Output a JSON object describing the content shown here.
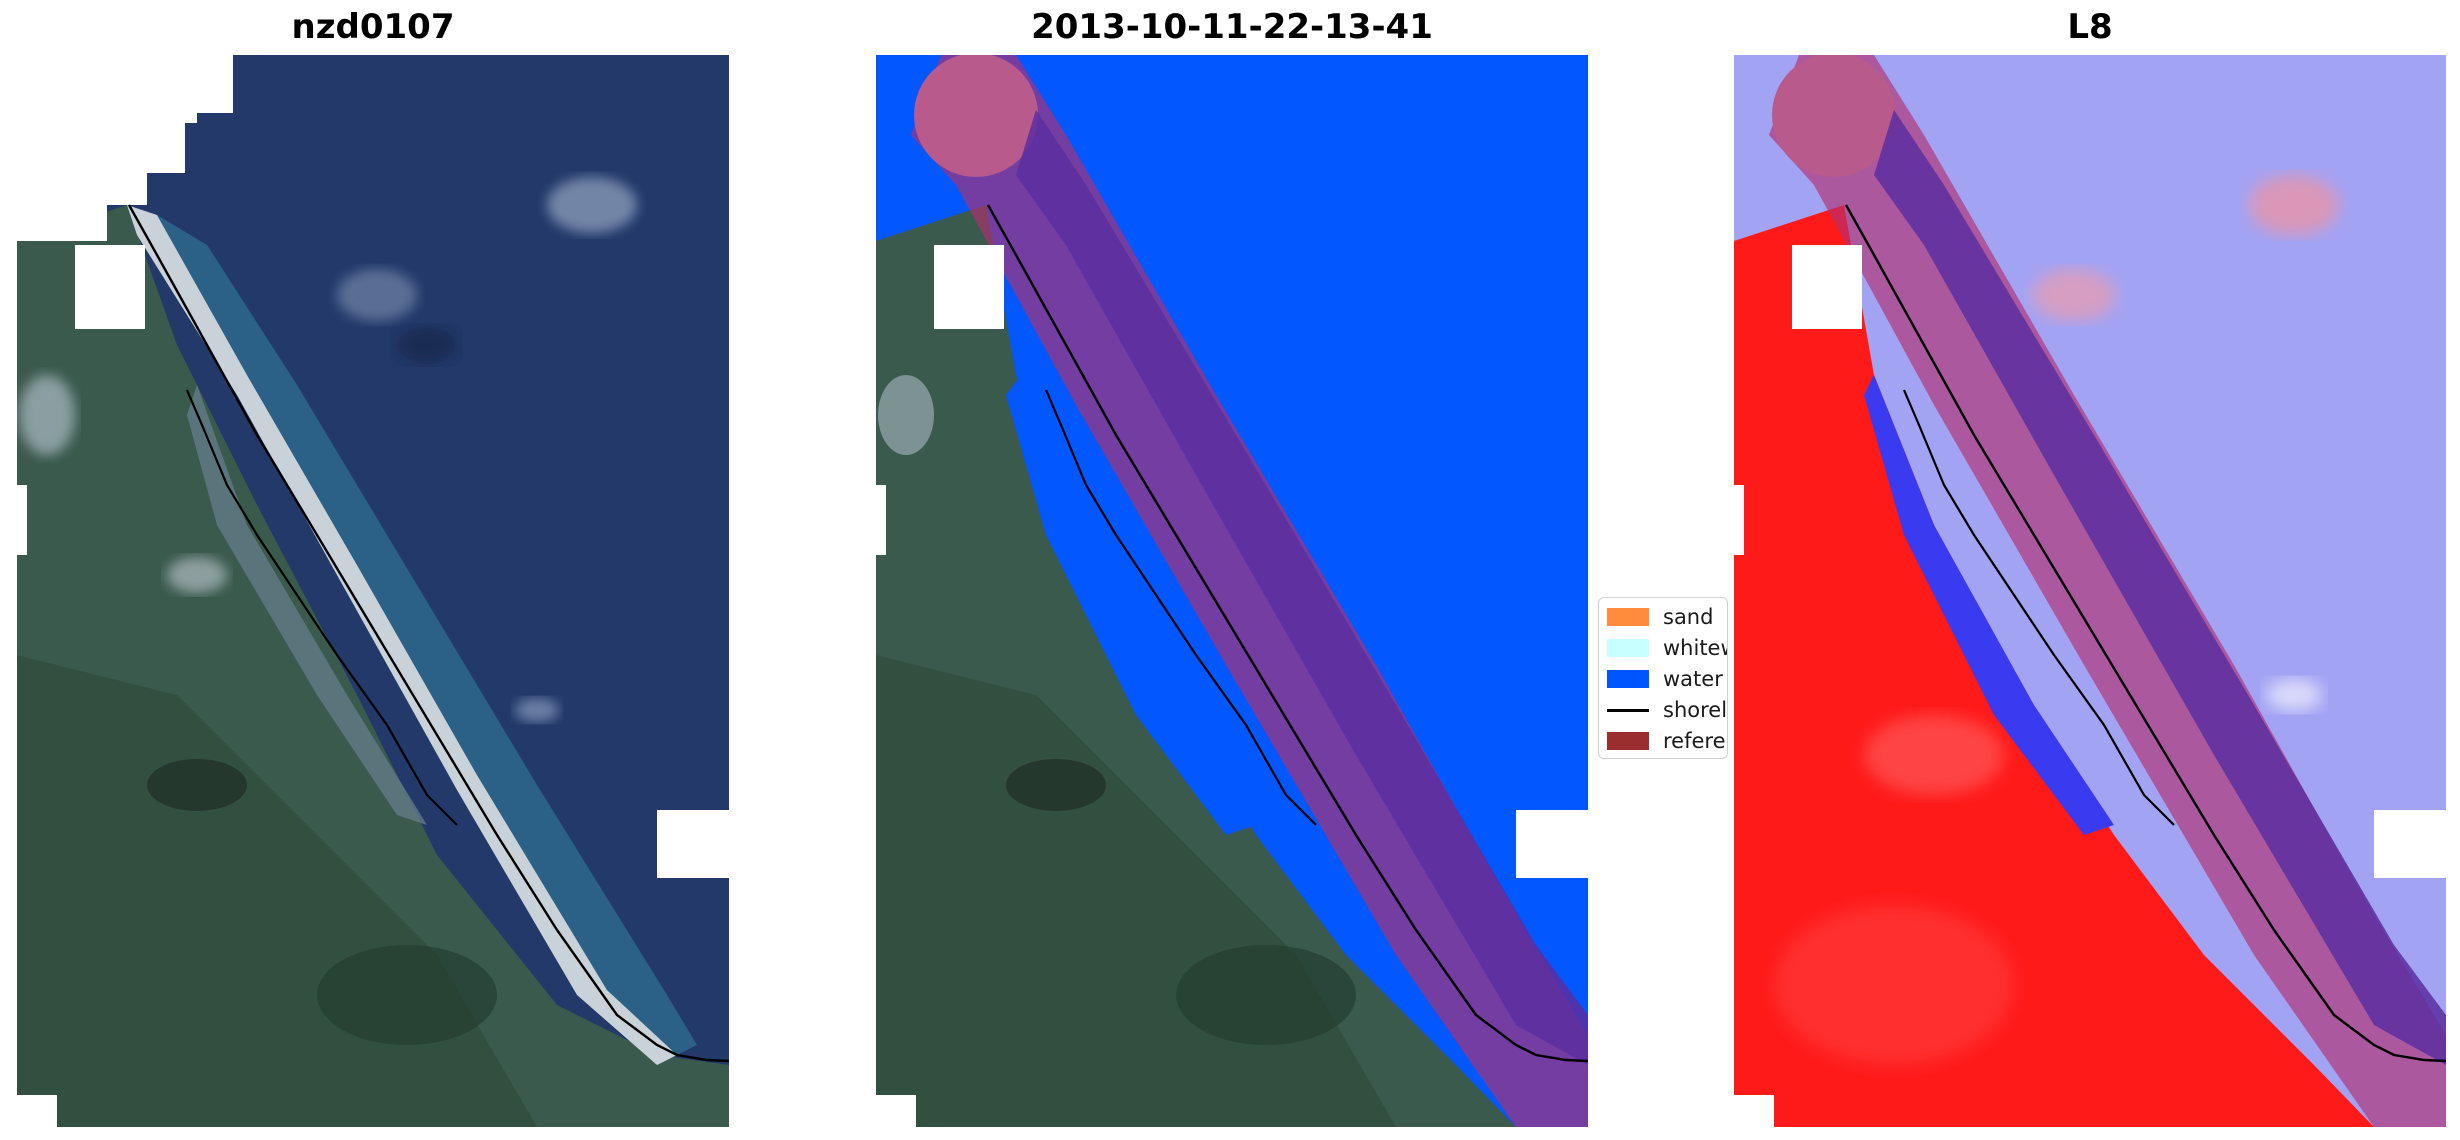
{
  "panels": [
    {
      "title": "nzd0107",
      "kind": "rgb"
    },
    {
      "title": "2013-10-11-22-13-41",
      "kind": "classification"
    },
    {
      "title": "L8",
      "kind": "index"
    }
  ],
  "legend": {
    "items": [
      {
        "label": "sand",
        "color": "#ff8c3c",
        "type": "patch"
      },
      {
        "label": "whitewater",
        "color": "#c8ffff",
        "type": "patch"
      },
      {
        "label": "water",
        "color": "#0055ff",
        "type": "patch"
      },
      {
        "label": "shoreline",
        "color": "#000000",
        "type": "line"
      },
      {
        "label": "reference shoreline buffer",
        "color": "#9a2e2e",
        "type": "patch"
      }
    ]
  },
  "colors": {
    "sea_rgb": "#243b66",
    "land_rgb": "#3c5a4c",
    "water_class": "#0055ff",
    "buffer_overlay": "#b0306f",
    "index_land": "#ff1a1a",
    "index_water": "#9f9ff2",
    "shoreline": "#000000"
  }
}
